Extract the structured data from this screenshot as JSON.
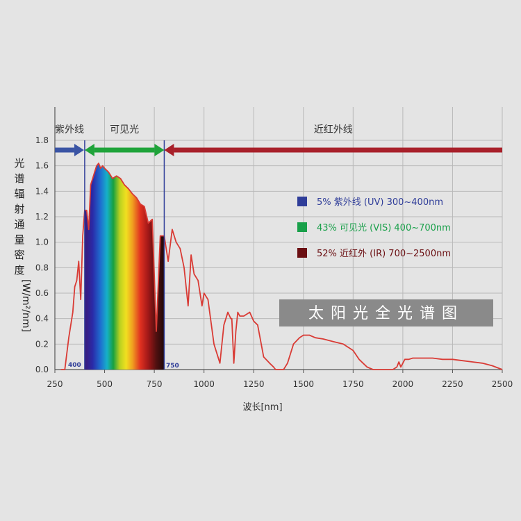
{
  "chart_data": {
    "type": "line",
    "title_box": "太阳光全光谱图",
    "xlabel": "波长[nm]",
    "ylabel": "光谱辐射通量密度 [W/m²/nm]",
    "xlim": [
      250,
      2500
    ],
    "ylim": [
      0,
      1.8
    ],
    "x_ticks": [
      250,
      500,
      750,
      1000,
      1250,
      1500,
      1750,
      2000,
      2250,
      2500
    ],
    "y_ticks": [
      0.0,
      0.2,
      0.4,
      0.6,
      0.8,
      1.0,
      1.2,
      1.4,
      1.6,
      1.8
    ],
    "grid": true,
    "regions": [
      {
        "label": "紫外线",
        "from": 250,
        "to": 400,
        "color": "#3a54a4"
      },
      {
        "label": "可见光",
        "from": 400,
        "to": 800,
        "color": "#1fa33a"
      },
      {
        "label": "近红外线",
        "from": 800,
        "to": 2500,
        "color": "#a8202a"
      }
    ],
    "boundary_labels": [
      "400",
      "750"
    ],
    "legend": [
      {
        "percent": "5%",
        "text": "紫外线 (UV)",
        "range": "300~400nm",
        "color": "#2f3d99"
      },
      {
        "percent": "43%",
        "text": "可见光 (VIS)",
        "range": "400~700nm",
        "color": "#19a04a"
      },
      {
        "percent": "52%",
        "text": "近红外 (IR)",
        "range": "700~2500nm",
        "color": "#6b0f12"
      }
    ],
    "series": [
      {
        "color": "#d93b35",
        "x": [
          280,
          300,
          320,
          340,
          350,
          360,
          370,
          380,
          390,
          400,
          410,
          420,
          430,
          440,
          450,
          460,
          470,
          480,
          490,
          500,
          520,
          540,
          560,
          580,
          600,
          620,
          640,
          660,
          680,
          700,
          720,
          740,
          760,
          780,
          800,
          820,
          840,
          860,
          880,
          900,
          920,
          935,
          950,
          970,
          990,
          1000,
          1020,
          1050,
          1080,
          1100,
          1120,
          1135,
          1140,
          1150,
          1160,
          1170,
          1180,
          1200,
          1230,
          1250,
          1270,
          1300,
          1330,
          1350,
          1360,
          1380,
          1400,
          1420,
          1450,
          1480,
          1500,
          1530,
          1560,
          1600,
          1650,
          1700,
          1750,
          1780,
          1800,
          1820,
          1850,
          1900,
          1950,
          1970,
          1980,
          1990,
          2000,
          2010,
          2030,
          2050,
          2100,
          2150,
          2200,
          2250,
          2300,
          2350,
          2400,
          2450,
          2500
        ],
        "y": [
          0.0,
          0.0,
          0.25,
          0.45,
          0.65,
          0.7,
          0.85,
          0.55,
          1.05,
          1.25,
          1.25,
          1.1,
          1.45,
          1.5,
          1.55,
          1.6,
          1.62,
          1.58,
          1.6,
          1.58,
          1.55,
          1.5,
          1.52,
          1.5,
          1.45,
          1.42,
          1.38,
          1.35,
          1.3,
          1.28,
          1.15,
          1.18,
          0.3,
          1.05,
          1.05,
          0.85,
          1.1,
          1.0,
          0.95,
          0.8,
          0.5,
          0.9,
          0.75,
          0.7,
          0.5,
          0.6,
          0.55,
          0.2,
          0.05,
          0.35,
          0.45,
          0.4,
          0.4,
          0.05,
          0.3,
          0.45,
          0.42,
          0.42,
          0.45,
          0.38,
          0.35,
          0.1,
          0.05,
          0.02,
          0.0,
          0.0,
          0.0,
          0.05,
          0.2,
          0.25,
          0.27,
          0.27,
          0.25,
          0.24,
          0.22,
          0.2,
          0.15,
          0.08,
          0.05,
          0.02,
          0.0,
          0.0,
          0.0,
          0.02,
          0.06,
          0.02,
          0.05,
          0.08,
          0.08,
          0.09,
          0.09,
          0.09,
          0.08,
          0.08,
          0.07,
          0.06,
          0.05,
          0.03,
          0.0
        ]
      }
    ]
  }
}
